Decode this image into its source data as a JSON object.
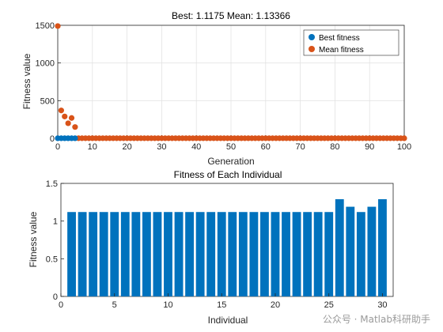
{
  "chart_data": [
    {
      "type": "scatter",
      "title": "Best: 1.1175 Mean: 1.13366",
      "xlabel": "Generation",
      "ylabel": "Fitness value",
      "xlim": [
        0,
        100
      ],
      "ylim": [
        0,
        1500
      ],
      "xticks": [
        0,
        10,
        20,
        30,
        40,
        50,
        60,
        70,
        80,
        90,
        100
      ],
      "yticks": [
        0,
        500,
        1000,
        1500
      ],
      "grid": true,
      "legend_position": "top-right",
      "series": [
        {
          "name": "Mean fitness",
          "color": "#D95319",
          "x": [
            0,
            1,
            2,
            3,
            4,
            5,
            6,
            7,
            8,
            9,
            10,
            11,
            12,
            13,
            14,
            15,
            16,
            17,
            18,
            19,
            20,
            21,
            22,
            23,
            24,
            25,
            26,
            27,
            28,
            29,
            30,
            31,
            32,
            33,
            34,
            35,
            36,
            37,
            38,
            39,
            40,
            41,
            42,
            43,
            44,
            45,
            46,
            47,
            48,
            49,
            50,
            51,
            52,
            53,
            54,
            55,
            56,
            57,
            58,
            59,
            60,
            61,
            62,
            63,
            64,
            65,
            66,
            67,
            68,
            69,
            70,
            71,
            72,
            73,
            74,
            75,
            76,
            77,
            78,
            79,
            80,
            81,
            82,
            83,
            84,
            85,
            86,
            87,
            88,
            89,
            90,
            91,
            92,
            93,
            94,
            95,
            96,
            97,
            98,
            99,
            100
          ],
          "y": [
            1490,
            370,
            290,
            200,
            270,
            150,
            1.2,
            1.2,
            1.2,
            1.2,
            1.2,
            1.2,
            1.2,
            1.2,
            1.2,
            1.2,
            1.2,
            1.2,
            1.2,
            1.2,
            1.2,
            1.2,
            1.2,
            1.2,
            1.2,
            1.2,
            1.2,
            1.2,
            1.2,
            1.2,
            1.2,
            1.2,
            1.2,
            1.2,
            1.2,
            1.2,
            1.2,
            1.2,
            1.2,
            1.2,
            1.2,
            1.2,
            1.2,
            1.2,
            1.2,
            1.2,
            1.2,
            1.2,
            1.2,
            1.2,
            1.2,
            1.2,
            1.2,
            1.2,
            1.2,
            1.2,
            1.2,
            1.2,
            1.2,
            1.2,
            1.2,
            1.2,
            1.2,
            1.2,
            1.2,
            1.2,
            1.2,
            1.2,
            1.2,
            1.2,
            1.2,
            1.2,
            1.2,
            1.2,
            1.2,
            1.2,
            1.2,
            1.2,
            1.2,
            1.2,
            1.2,
            1.2,
            1.2,
            1.2,
            1.2,
            1.2,
            1.2,
            1.2,
            1.2,
            1.2,
            1.2,
            1.2,
            1.2,
            1.2,
            1.2,
            1.2,
            1.2,
            1.2,
            1.2,
            1.2,
            1.13
          ]
        },
        {
          "name": "Best fitness",
          "color": "#0072BD",
          "x": [
            0,
            1,
            2,
            3,
            4,
            5
          ],
          "y": [
            1.12,
            1.12,
            1.12,
            1.12,
            1.12,
            1.12
          ]
        }
      ]
    },
    {
      "type": "bar",
      "title": "Fitness of Each Individual",
      "xlabel": "Individual",
      "ylabel": "Fitness value",
      "xlim": [
        0,
        31
      ],
      "ylim": [
        0,
        1.5
      ],
      "xticks": [
        0,
        5,
        10,
        15,
        20,
        25,
        30
      ],
      "yticks": [
        0,
        0.5,
        1,
        1.5
      ],
      "ytick_labels": [
        "0",
        "0.5",
        "1",
        "1.5"
      ],
      "grid": false,
      "color": "#0072BD",
      "categories": [
        1,
        2,
        3,
        4,
        5,
        6,
        7,
        8,
        9,
        10,
        11,
        12,
        13,
        14,
        15,
        16,
        17,
        18,
        19,
        20,
        21,
        22,
        23,
        24,
        25,
        26,
        27,
        28,
        29,
        30
      ],
      "values": [
        1.12,
        1.12,
        1.12,
        1.12,
        1.12,
        1.12,
        1.12,
        1.12,
        1.12,
        1.12,
        1.12,
        1.12,
        1.12,
        1.12,
        1.12,
        1.12,
        1.12,
        1.12,
        1.12,
        1.12,
        1.12,
        1.12,
        1.12,
        1.12,
        1.12,
        1.29,
        1.19,
        1.12,
        1.19,
        1.29
      ]
    }
  ],
  "watermark": "公众号 · Matlab科研助手"
}
